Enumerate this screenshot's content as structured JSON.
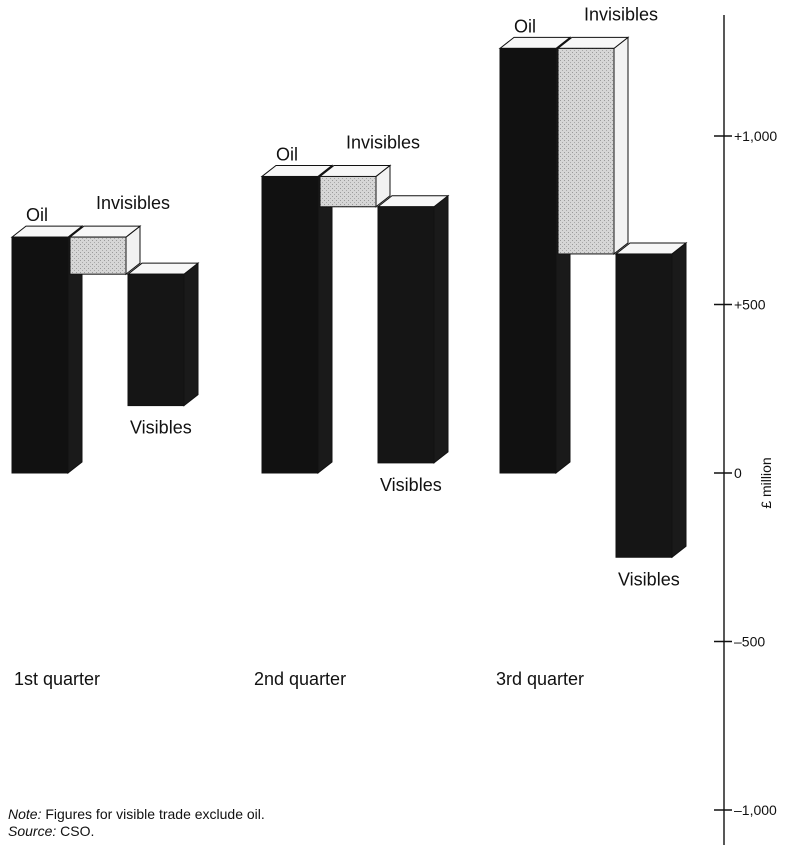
{
  "chart_data": {
    "type": "bar",
    "style": "3d-waterfall",
    "categories": [
      "1st quarter",
      "2nd quarter",
      "3rd quarter"
    ],
    "series": [
      {
        "name": "Oil",
        "values": [
          700,
          880,
          1260
        ],
        "color": "#111111"
      },
      {
        "name": "Invisibles",
        "values": [
          -110,
          -90,
          -610
        ],
        "color": "#d2d2d2"
      },
      {
        "name": "Visibles",
        "values": [
          -390,
          -760,
          -900
        ],
        "color": "#151515"
      }
    ],
    "yticks": [
      1000,
      500,
      0,
      -500,
      -1000
    ],
    "ytick_labels": [
      "+1,000",
      "+500",
      "0",
      "–500",
      "–1,000"
    ],
    "ylabel": "£ million",
    "ylim": [
      -1000,
      1300
    ],
    "legend": "none",
    "grid": false
  },
  "footer": {
    "note_label": "Note:",
    "note_text": " Figures for visible trade exclude oil.",
    "source_label": "Source:",
    "source_text": " CSO."
  }
}
